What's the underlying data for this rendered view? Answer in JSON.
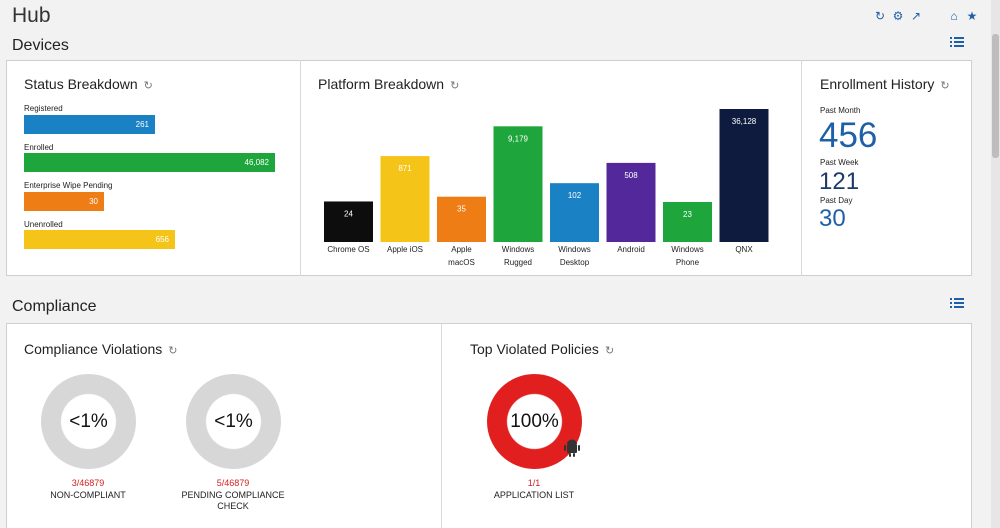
{
  "hub": {
    "title": "Hub"
  },
  "top_icons": [
    "refresh-icon",
    "gear-icon",
    "external-link-icon",
    "home-icon",
    "star-icon"
  ],
  "devices": {
    "title": "Devices",
    "status": {
      "title": "Status Breakdown",
      "items": [
        {
          "label": "Registered",
          "value": "261",
          "color": "#1a82c4",
          "fraction": 0.52
        },
        {
          "label": "Enrolled",
          "value": "46,082",
          "color": "#1ea63c",
          "fraction": 1.0
        },
        {
          "label": "Enterprise Wipe Pending",
          "value": "30",
          "color": "#ee7d16",
          "fraction": 0.32
        },
        {
          "label": "Unenrolled",
          "value": "656",
          "color": "#f5c419",
          "fraction": 0.6
        }
      ]
    },
    "platform": {
      "title": "Platform Breakdown"
    },
    "enrollment": {
      "title": "Enrollment History",
      "past_month_label": "Past Month",
      "past_month_value": "456",
      "past_week_label": "Past Week",
      "past_week_value": "121",
      "past_day_label": "Past Day",
      "past_day_value": "30"
    }
  },
  "compliance": {
    "title": "Compliance",
    "violations": {
      "title": "Compliance Violations",
      "non_compliant": {
        "percent": "<1%",
        "fraction": "3/46879",
        "caption": "NON-COMPLIANT"
      },
      "pending": {
        "percent": "<1%",
        "fraction": "5/46879",
        "caption_line1": "PENDING COMPLIANCE",
        "caption_line2": "CHECK"
      }
    },
    "top_policies": {
      "title": "Top Violated Policies",
      "percent": "100%",
      "fraction": "1/1",
      "caption": "APPLICATION LIST"
    }
  },
  "chart_data": {
    "type": "bar",
    "categories": [
      "Chrome OS",
      "Apple iOS",
      "Apple macOS",
      "Windows Rugged",
      "Windows Desktop",
      "Android",
      "Windows Phone",
      "QNX"
    ],
    "category_lines": [
      [
        "Chrome OS"
      ],
      [
        "Apple iOS"
      ],
      [
        "Apple",
        "macOS"
      ],
      [
        "Windows",
        "Rugged"
      ],
      [
        "Windows",
        "Desktop"
      ],
      [
        "Android"
      ],
      [
        "Windows",
        "Phone"
      ],
      [
        "QNX"
      ]
    ],
    "values": [
      24,
      871,
      35,
      9179,
      102,
      508,
      23,
      36128
    ],
    "value_labels": [
      "24",
      "871",
      "35",
      "9,179",
      "102",
      "508",
      "23",
      "36,128"
    ],
    "colors": [
      "#0d0d0d",
      "#f5c419",
      "#ee7d16",
      "#1ea63c",
      "#1a82c4",
      "#53289a",
      "#1ea63c",
      "#0f1b3e"
    ],
    "scale": "log",
    "title": "Platform Breakdown"
  }
}
